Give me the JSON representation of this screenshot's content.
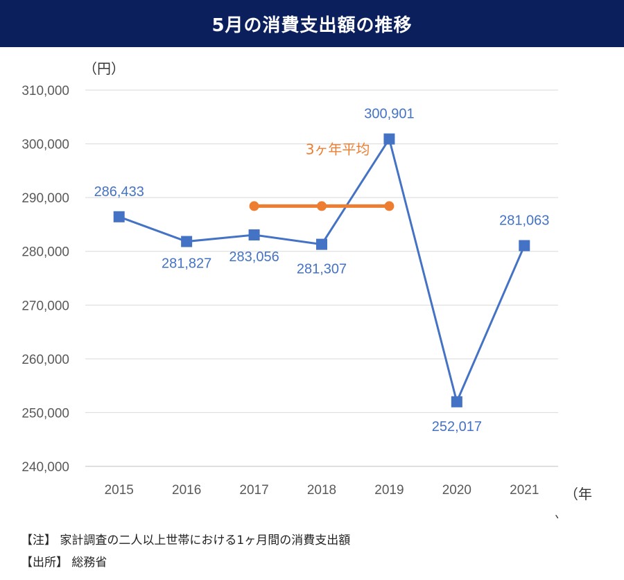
{
  "title": "5月の消費支出額の推移",
  "colors": {
    "title_bg": "#0b1f5c",
    "series": "#4472c4",
    "average": "#ed7d31",
    "grid": "#d9d9d9"
  },
  "chart_data": {
    "type": "line",
    "title": "5月の消費支出額の推移",
    "y_unit": "（円）",
    "x_unit": "（年）",
    "x": [
      "2015",
      "2016",
      "2017",
      "2018",
      "2019",
      "2020",
      "2021"
    ],
    "ylim": [
      240000,
      310000
    ],
    "yticks": [
      "310,000",
      "300,000",
      "290,000",
      "280,000",
      "270,000",
      "260,000",
      "250,000",
      "240,000"
    ],
    "grid": true,
    "series": [
      {
        "values": [
          286433,
          281827,
          283056,
          281307,
          300901,
          252017,
          281063
        ],
        "labels": [
          "286,433",
          "281,827",
          "283,056",
          "281,307",
          "300,901",
          "252,017",
          "281,063"
        ],
        "color": "#4472c4",
        "marker": "square"
      },
      {
        "name": "3ヶ年平均",
        "x": [
          "2017",
          "2018",
          "2019"
        ],
        "values": [
          288421,
          288421,
          288421
        ],
        "color": "#ed7d31",
        "marker": "circle"
      }
    ]
  },
  "notes": {
    "note1": "【注】 家計調査の二人以上世帯における1ヶ月間の消費支出額",
    "note2": "【出所】 総務省"
  }
}
